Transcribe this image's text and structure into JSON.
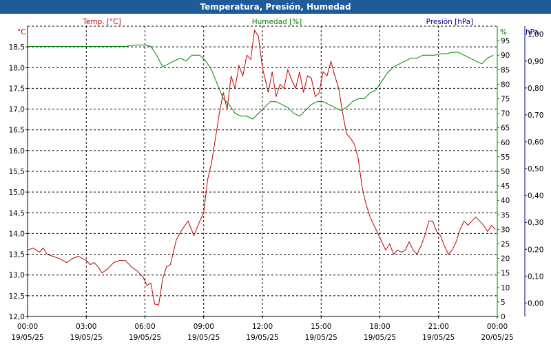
{
  "title": "Temperatura, Presión, Humedad",
  "chart_data": {
    "type": "line",
    "title": "Temperatura, Presión, Humedad",
    "x_labels": [
      {
        "time": "00:00",
        "date": "19/05/25",
        "hour": 0
      },
      {
        "time": "03:00",
        "date": "19/05/25",
        "hour": 3
      },
      {
        "time": "06:00",
        "date": "19/05/25",
        "hour": 6
      },
      {
        "time": "09:00",
        "date": "19/05/25",
        "hour": 9
      },
      {
        "time": "12:00",
        "date": "19/05/25",
        "hour": 12
      },
      {
        "time": "15:00",
        "date": "19/05/25",
        "hour": 15
      },
      {
        "time": "18:00",
        "date": "19/05/25",
        "hour": 18
      },
      {
        "time": "21:00",
        "date": "19/05/25",
        "hour": 21
      },
      {
        "time": "00:00",
        "date": "20/05/25",
        "hour": 24
      }
    ],
    "xlim": [
      0,
      24
    ],
    "axes": {
      "temp": {
        "unit": "°C",
        "header": "Temp. [°C]",
        "color": "#c00000",
        "ylim": [
          12.0,
          19.0
        ],
        "ticks": [
          "12,0",
          "12,5",
          "13,0",
          "13,5",
          "14,0",
          "14,5",
          "15,0",
          "15,5",
          "16,0",
          "16,5",
          "17,0",
          "17,5",
          "18,0",
          "18,5"
        ],
        "tick_values": [
          12.0,
          12.5,
          13.0,
          13.5,
          14.0,
          14.5,
          15.0,
          15.5,
          16.0,
          16.5,
          17.0,
          17.5,
          18.0,
          18.5
        ]
      },
      "hum": {
        "unit": "%",
        "header": "Humedad [%]",
        "color": "#008000",
        "ylim": [
          0,
          100
        ],
        "ticks": [
          "0",
          "5",
          "10",
          "15",
          "20",
          "25",
          "30",
          "35",
          "40",
          "45",
          "50",
          "55",
          "60",
          "65",
          "70",
          "75",
          "80",
          "85",
          "90",
          "95"
        ],
        "tick_values": [
          0,
          5,
          10,
          15,
          20,
          25,
          30,
          35,
          40,
          45,
          50,
          55,
          60,
          65,
          70,
          75,
          80,
          85,
          90,
          95
        ]
      },
      "pres": {
        "unit": "hPa",
        "header": "Presión [hPa]",
        "color": "#00008b",
        "ylim": [
          -0.05,
          1.03
        ],
        "ticks": [
          "0,00",
          "0,10",
          "0,20",
          "0,30",
          "0,40",
          "0,50",
          "0,60",
          "0,70",
          "0,80",
          "0,90",
          "1,00"
        ],
        "tick_values": [
          0,
          0.1,
          0.2,
          0.3,
          0.4,
          0.5,
          0.6,
          0.7,
          0.8,
          0.9,
          1.0
        ]
      }
    },
    "series": [
      {
        "name": "Temperatura",
        "axis": "temp",
        "color": "#c00000",
        "x": [
          0,
          0.3,
          0.6,
          0.8,
          1.0,
          1.3,
          1.6,
          2.0,
          2.3,
          2.6,
          3.0,
          3.2,
          3.4,
          3.6,
          3.8,
          4.1,
          4.4,
          4.7,
          5.0,
          5.3,
          5.6,
          5.9,
          6.1,
          6.3,
          6.5,
          6.7,
          6.9,
          7.1,
          7.3,
          7.6,
          7.9,
          8.2,
          8.5,
          8.8,
          9.0,
          9.2,
          9.4,
          9.6,
          9.8,
          10.0,
          10.2,
          10.4,
          10.6,
          10.8,
          11.0,
          11.2,
          11.4,
          11.6,
          11.8,
          12.0,
          12.15,
          12.3,
          12.5,
          12.7,
          12.9,
          13.1,
          13.3,
          13.5,
          13.7,
          13.9,
          14.1,
          14.3,
          14.5,
          14.7,
          14.9,
          15.1,
          15.3,
          15.5,
          15.7,
          15.9,
          16.1,
          16.3,
          16.5,
          16.7,
          16.9,
          17.1,
          17.3,
          17.5,
          17.7,
          17.9,
          18.1,
          18.3,
          18.5,
          18.7,
          18.9,
          19.1,
          19.3,
          19.5,
          19.7,
          19.9,
          20.1,
          20.3,
          20.5,
          20.7,
          20.9,
          21.1,
          21.3,
          21.5,
          21.7,
          21.9,
          22.1,
          22.3,
          22.5,
          22.7,
          22.9,
          23.1,
          23.3,
          23.5,
          23.7,
          23.9
        ],
        "values": [
          13.6,
          13.65,
          13.55,
          13.65,
          13.5,
          13.45,
          13.4,
          13.3,
          13.4,
          13.45,
          13.35,
          13.25,
          13.3,
          13.2,
          13.05,
          13.15,
          13.3,
          13.35,
          13.35,
          13.2,
          13.1,
          12.95,
          12.75,
          12.8,
          12.3,
          12.28,
          12.9,
          13.2,
          13.25,
          13.85,
          14.1,
          14.3,
          13.95,
          14.3,
          14.5,
          15.3,
          15.7,
          16.3,
          16.9,
          17.4,
          17.0,
          17.8,
          17.5,
          18.05,
          17.8,
          18.3,
          18.2,
          18.9,
          18.75,
          18.0,
          17.7,
          17.4,
          17.9,
          17.3,
          17.6,
          17.5,
          17.95,
          17.7,
          17.5,
          17.9,
          17.4,
          17.8,
          17.75,
          17.3,
          17.4,
          17.9,
          17.8,
          18.15,
          17.8,
          17.5,
          16.9,
          16.4,
          16.3,
          16.15,
          15.8,
          15.1,
          14.7,
          14.4,
          14.2,
          14.0,
          13.8,
          13.6,
          13.75,
          13.5,
          13.6,
          13.55,
          13.6,
          13.8,
          13.6,
          13.5,
          13.7,
          13.95,
          14.3,
          14.3,
          14.05,
          13.95,
          13.7,
          13.5,
          13.6,
          13.8,
          14.1,
          14.3,
          14.2,
          14.3,
          14.4,
          14.3,
          14.2,
          14.05,
          14.2,
          14.1
        ],
        "display_values_note": "temperature in °C"
      },
      {
        "name": "Humedad",
        "axis": "hum",
        "color": "#008000",
        "x": [
          0,
          0.5,
          1.0,
          1.5,
          2.0,
          2.5,
          3.0,
          3.5,
          4.0,
          4.5,
          5.0,
          5.5,
          6.0,
          6.3,
          6.6,
          6.9,
          7.2,
          7.5,
          7.8,
          8.1,
          8.4,
          8.6,
          8.8,
          9.1,
          9.4,
          9.7,
          10.0,
          10.3,
          10.6,
          10.9,
          11.2,
          11.5,
          11.8,
          12.1,
          12.4,
          12.7,
          13.0,
          13.3,
          13.6,
          13.9,
          14.2,
          14.5,
          14.8,
          15.1,
          15.4,
          15.7,
          16.0,
          16.3,
          16.6,
          16.9,
          17.2,
          17.5,
          17.8,
          18.1,
          18.4,
          18.7,
          19.0,
          19.3,
          19.6,
          19.9,
          20.2,
          20.5,
          20.8,
          21.1,
          21.4,
          21.7,
          22.0,
          22.3,
          22.6,
          22.9,
          23.2,
          23.5,
          23.8
        ],
        "values": [
          93,
          93,
          93,
          93,
          93,
          93,
          93,
          93,
          93,
          93,
          93,
          93.5,
          93.5,
          93,
          90,
          86,
          87,
          88,
          89,
          88,
          90,
          90,
          90,
          88,
          85,
          80,
          75,
          73,
          70,
          69,
          69,
          68,
          70,
          72,
          74,
          74,
          73,
          72,
          70,
          69,
          71,
          73,
          74,
          74,
          73,
          72,
          71,
          72,
          74,
          75,
          75,
          77,
          78,
          81,
          84,
          86,
          87,
          88,
          89,
          89,
          90,
          90,
          90,
          90.5,
          90.5,
          91,
          91,
          90,
          89,
          88,
          87,
          89,
          90
        ]
      },
      {
        "name": "Presión",
        "axis": "pres",
        "color": "#00008b",
        "x": [],
        "values": []
      }
    ]
  }
}
